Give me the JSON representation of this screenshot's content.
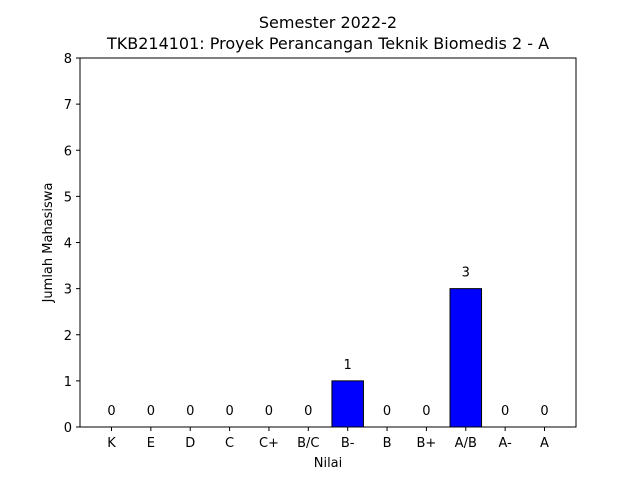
{
  "chart_data": {
    "type": "bar",
    "title_line1": "Semester 2022-2",
    "title_line2": "TKB214101: Proyek Perancangan Teknik Biomedis 2 - A",
    "xlabel": "Nilai",
    "ylabel": "Jumlah Mahasiswa",
    "categories": [
      "K",
      "E",
      "D",
      "C",
      "C+",
      "B/C",
      "B-",
      "B",
      "B+",
      "A/B",
      "A-",
      "A"
    ],
    "values": [
      0,
      0,
      0,
      0,
      0,
      0,
      1,
      0,
      0,
      3,
      0,
      0
    ],
    "ylim": [
      0,
      8
    ],
    "yticks": [
      "0",
      "1",
      "2",
      "3",
      "4",
      "5",
      "6",
      "7",
      "8"
    ],
    "bar_color": "#0000ff",
    "grid": false,
    "legend": "none"
  }
}
